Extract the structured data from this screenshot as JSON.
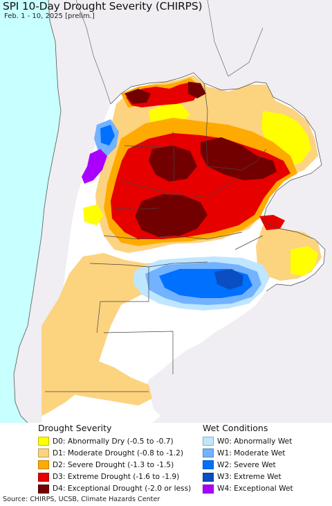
{
  "title": "SPI 10-Day Drought Severity (CHIRPS)",
  "subtitle": "Feb. 1 - 10, 2025 [prelim.]",
  "legend": {
    "drought": {
      "heading": "Drought Severity",
      "items": [
        {
          "label": "D0: Abnormally Dry (-0.5 to -0.7)",
          "color": "#ffff00"
        },
        {
          "label": "D1: Moderate Drought (-0.8 to -1.2)",
          "color": "#fcd37f"
        },
        {
          "label": "D2: Severe Drought (-1.3 to -1.5)",
          "color": "#ffaa00"
        },
        {
          "label": "D3: Extreme Drought (-1.6 to -1.9)",
          "color": "#e60000"
        },
        {
          "label": "D4: Exceptional Drought (-2.0 or less)",
          "color": "#730000"
        }
      ]
    },
    "wet": {
      "heading": "Wet Conditions",
      "items": [
        {
          "label": "W0: Abnormally Wet",
          "color": "#bfe6ff"
        },
        {
          "label": "W1: Moderate Wet",
          "color": "#73b2ff"
        },
        {
          "label": "W2: Severe Wet",
          "color": "#0070ff"
        },
        {
          "label": "W3: Extreme Wet",
          "color": "#0b4ec2"
        },
        {
          "label": "W4: Exceptional Wet",
          "color": "#aa00ff"
        }
      ]
    }
  },
  "source": "Source: CHIRPS, UCSB, Climate Hazards Center",
  "colors": {
    "ocean": "#c8ffff",
    "outside_land": "#f0eef2",
    "land_normal": "#ffffff",
    "borders": "#444444"
  }
}
